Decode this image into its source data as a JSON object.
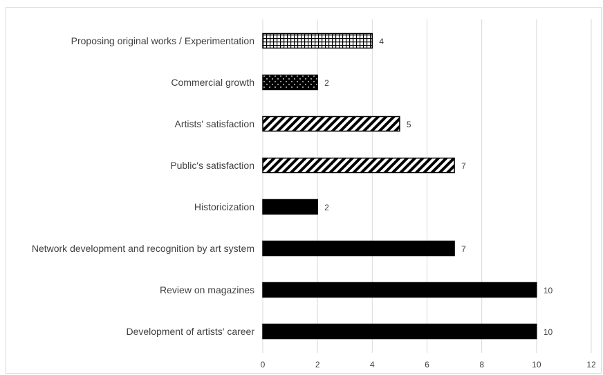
{
  "chart_data": {
    "type": "bar",
    "orientation": "horizontal",
    "title": "",
    "xlabel": "",
    "ylabel": "",
    "xlim": [
      0,
      12
    ],
    "xticks": [
      0,
      2,
      4,
      6,
      8,
      10,
      12
    ],
    "grid": "vertical",
    "legend": "none",
    "categories": [
      "Proposing original works / Experimentation",
      "Commercial growth",
      "Artists' satisfaction",
      "Public's satisfaction",
      "Historicization",
      "Network development and recognition by art system",
      "Review on magazines",
      "Development of artists' career"
    ],
    "values": [
      4,
      2,
      5,
      7,
      2,
      7,
      10,
      10
    ],
    "patterns": [
      "grid",
      "dots",
      "diagonal",
      "diagonal",
      "solid",
      "solid",
      "solid",
      "solid"
    ],
    "colors": {
      "bar": "#000000",
      "grid": "#d9d9d9",
      "text": "#404040"
    }
  }
}
